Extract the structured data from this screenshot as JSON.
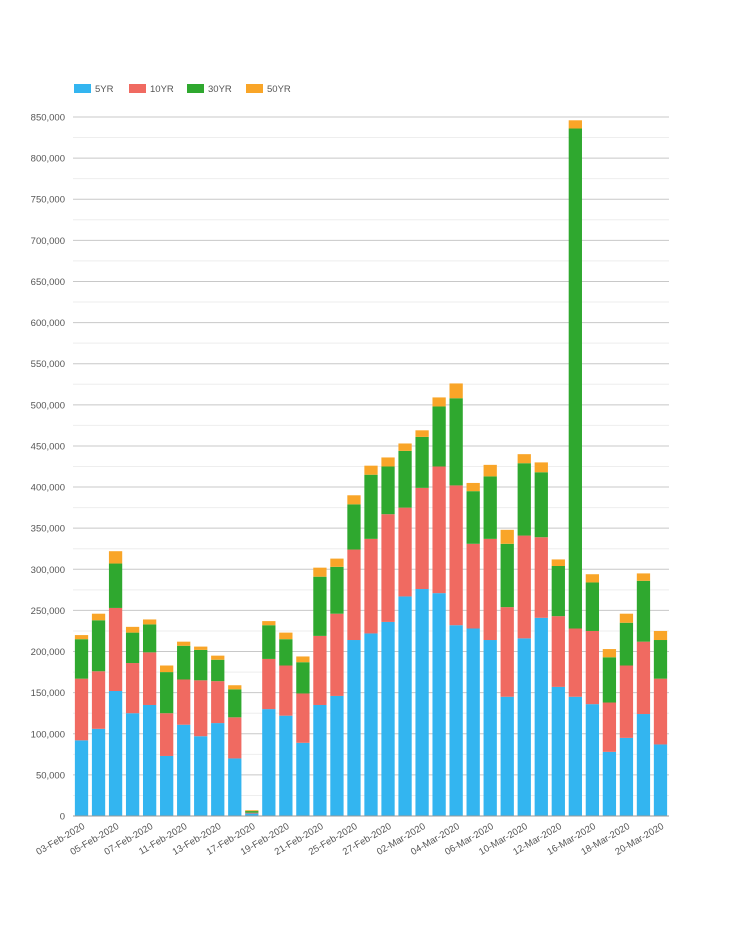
{
  "chart_data": {
    "type": "bar",
    "stacked": true,
    "legend_position": "top-left",
    "grid": true,
    "ylim": [
      0,
      850000
    ],
    "y_ticks": [
      0,
      50000,
      100000,
      150000,
      200000,
      250000,
      300000,
      350000,
      400000,
      450000,
      500000,
      550000,
      600000,
      650000,
      700000,
      750000,
      800000,
      850000
    ],
    "y_tick_labels": [
      "0",
      "50,000",
      "100,000",
      "150,000",
      "200,000",
      "250,000",
      "300,000",
      "350,000",
      "400,000",
      "450,000",
      "500,000",
      "550,000",
      "600,000",
      "650,000",
      "700,000",
      "750,000",
      "800,000",
      "850,000"
    ],
    "categories": [
      "03-Feb-2020",
      "04-Feb-2020",
      "05-Feb-2020",
      "06-Feb-2020",
      "07-Feb-2020",
      "10-Feb-2020",
      "11-Feb-2020",
      "12-Feb-2020",
      "13-Feb-2020",
      "14-Feb-2020",
      "17-Feb-2020",
      "18-Feb-2020",
      "19-Feb-2020",
      "20-Feb-2020",
      "21-Feb-2020",
      "24-Feb-2020",
      "25-Feb-2020",
      "26-Feb-2020",
      "27-Feb-2020",
      "28-Feb-2020",
      "02-Mar-2020",
      "03-Mar-2020",
      "04-Mar-2020",
      "05-Mar-2020",
      "06-Mar-2020",
      "09-Mar-2020",
      "10-Mar-2020",
      "11-Mar-2020",
      "12-Mar-2020",
      "13-Mar-2020",
      "16-Mar-2020",
      "17-Mar-2020",
      "18-Mar-2020",
      "19-Mar-2020",
      "20-Mar-2020"
    ],
    "shown_tick_labels": [
      "03-Feb-2020",
      "05-Feb-2020",
      "07-Feb-2020",
      "11-Feb-2020",
      "13-Feb-2020",
      "17-Feb-2020",
      "19-Feb-2020",
      "21-Feb-2020",
      "25-Feb-2020",
      "27-Feb-2020",
      "02-Mar-2020",
      "04-Mar-2020",
      "06-Mar-2020",
      "10-Mar-2020",
      "12-Mar-2020",
      "16-Mar-2020",
      "18-Mar-2020",
      "20-Mar-2020"
    ],
    "series": [
      {
        "name": "5YR",
        "color": "#33b5f0",
        "values": [
          92000,
          106000,
          152000,
          125000,
          135000,
          73000,
          111000,
          97000,
          113000,
          70000,
          3000,
          130000,
          122000,
          89000,
          135000,
          146000,
          214000,
          222000,
          236000,
          267000,
          276000,
          271000,
          232000,
          228000,
          214000,
          145000,
          216000,
          241000,
          157000,
          145000,
          136000,
          78000,
          95000,
          124000,
          87000
        ]
      },
      {
        "name": "10YR",
        "color": "#f06a61",
        "values": [
          75000,
          70000,
          101000,
          61000,
          64000,
          52000,
          55000,
          68000,
          51000,
          50000,
          1000,
          61000,
          61000,
          60000,
          84000,
          100000,
          110000,
          115000,
          131000,
          108000,
          123000,
          154000,
          170000,
          103000,
          123000,
          109000,
          125000,
          98000,
          86000,
          83000,
          89000,
          60000,
          88000,
          88000,
          80000
        ]
      },
      {
        "name": "30YR",
        "color": "#2fa82f",
        "values": [
          48000,
          62000,
          54000,
          37000,
          34000,
          50000,
          41000,
          37000,
          26000,
          34000,
          2000,
          41000,
          32000,
          38000,
          72000,
          57000,
          55000,
          78000,
          58000,
          69000,
          62000,
          73000,
          106000,
          64000,
          76000,
          77000,
          88000,
          79000,
          61000,
          608000,
          59000,
          55000,
          52000,
          74000,
          47000
        ]
      },
      {
        "name": "50YR",
        "color": "#f9a528",
        "values": [
          5000,
          8000,
          15000,
          7000,
          6000,
          8000,
          5000,
          4000,
          5000,
          5000,
          1000,
          5000,
          8000,
          7000,
          11000,
          10000,
          11000,
          11000,
          11000,
          9000,
          8000,
          11000,
          18000,
          10000,
          14000,
          17000,
          11000,
          12000,
          8000,
          10000,
          10000,
          10000,
          11000,
          9000,
          11000
        ]
      }
    ]
  }
}
